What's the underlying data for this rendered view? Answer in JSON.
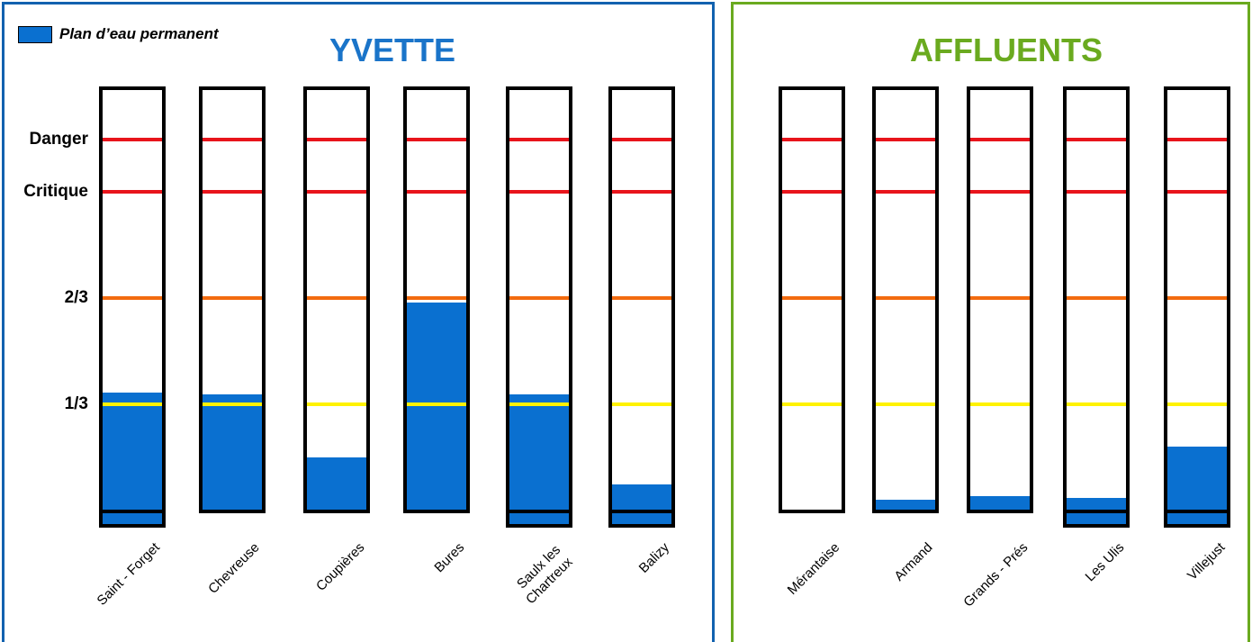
{
  "legend": {
    "label": "Plan d’eau permanent",
    "color": "#0A70D0"
  },
  "panels": {
    "yvette": {
      "title": "YVETTE",
      "border_color": "#1262AF",
      "title_color": "#1A74C9"
    },
    "affluents": {
      "title": "AFFLUENTS",
      "border_color": "#6AAA1F",
      "title_color": "#6AAA1F"
    }
  },
  "levels": [
    {
      "key": "danger",
      "label": "Danger",
      "fraction": 0.875,
      "color": "#E8141B"
    },
    {
      "key": "critique",
      "label": "Critique",
      "fraction": 0.75,
      "color": "#E8141B"
    },
    {
      "key": "two_thirds",
      "label": "2/3",
      "fraction": 0.5,
      "color": "#F26B0F"
    },
    {
      "key": "one_third",
      "label": "1/3",
      "fraction": 0.25,
      "color": "#FFF200"
    }
  ],
  "stations": [
    {
      "group": "yvette",
      "name": "Saint - Forget",
      "fill_fraction": 0.276,
      "base_stripe": true
    },
    {
      "group": "yvette",
      "name": "Chevreuse",
      "fill_fraction": 0.272,
      "base_stripe": false
    },
    {
      "group": "yvette",
      "name": "Coupières",
      "fill_fraction": 0.124,
      "base_stripe": false
    },
    {
      "group": "yvette",
      "name": "Bures",
      "fill_fraction": 0.49,
      "base_stripe": false
    },
    {
      "group": "yvette",
      "name": "Saulx les\nChartreux",
      "fill_fraction": 0.272,
      "base_stripe": true
    },
    {
      "group": "yvette",
      "name": "Balizy",
      "fill_fraction": 0.06,
      "base_stripe": true
    },
    {
      "group": "affluents",
      "name": "Mérantaise",
      "fill_fraction": 0.0,
      "base_stripe": false
    },
    {
      "group": "affluents",
      "name": "Armand",
      "fill_fraction": 0.024,
      "base_stripe": false
    },
    {
      "group": "affluents",
      "name": "Grands - Prés",
      "fill_fraction": 0.032,
      "base_stripe": false
    },
    {
      "group": "affluents",
      "name": "Les Ulis",
      "fill_fraction": 0.028,
      "base_stripe": true
    },
    {
      "group": "affluents",
      "name": "Villejust",
      "fill_fraction": 0.148,
      "base_stripe": true
    }
  ]
}
